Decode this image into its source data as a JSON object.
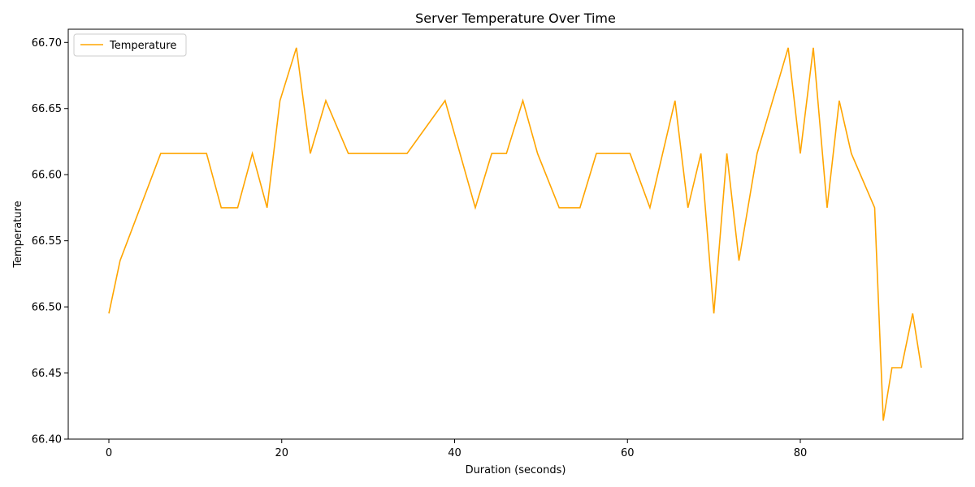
{
  "chart_data": {
    "type": "line",
    "title": "Server Temperature Over Time",
    "xlabel": "Duration (seconds)",
    "ylabel": "Temperature",
    "xlim": [
      -4.7,
      98.8
    ],
    "ylim": [
      66.4,
      66.71
    ],
    "xticks": [
      0,
      20,
      40,
      60,
      80
    ],
    "xtick_labels": [
      "0",
      "20",
      "40",
      "60",
      "80"
    ],
    "yticks": [
      66.4,
      66.45,
      66.5,
      66.55,
      66.6,
      66.65,
      66.7
    ],
    "ytick_labels": [
      "66.40",
      "66.45",
      "66.50",
      "66.55",
      "66.60",
      "66.65",
      "66.70"
    ],
    "grid": false,
    "legend_position": "upper-left",
    "series": [
      {
        "name": "Temperature",
        "color": "#FFA500",
        "x": [
          0.0,
          1.3,
          6.0,
          11.3,
          13.0,
          14.9,
          16.6,
          18.3,
          19.8,
          21.7,
          23.3,
          25.1,
          27.7,
          30.0,
          34.5,
          38.9,
          42.4,
          44.3,
          46.0,
          47.9,
          49.6,
          52.1,
          54.5,
          56.4,
          60.3,
          62.6,
          65.5,
          67.0,
          68.5,
          70.0,
          71.5,
          72.9,
          75.0,
          78.6,
          80.0,
          81.5,
          83.1,
          84.5,
          85.9,
          88.6,
          89.6,
          90.6,
          91.7,
          93.0,
          94.0
        ],
        "y": [
          66.495,
          66.535,
          66.616,
          66.616,
          66.575,
          66.575,
          66.616,
          66.575,
          66.656,
          66.696,
          66.616,
          66.656,
          66.616,
          66.616,
          66.616,
          66.656,
          66.575,
          66.616,
          66.616,
          66.656,
          66.616,
          66.575,
          66.575,
          66.616,
          66.616,
          66.575,
          66.656,
          66.575,
          66.616,
          66.495,
          66.616,
          66.535,
          66.616,
          66.696,
          66.616,
          66.696,
          66.575,
          66.656,
          66.616,
          66.575,
          66.414,
          66.454,
          66.454,
          66.495,
          66.454
        ]
      }
    ]
  }
}
